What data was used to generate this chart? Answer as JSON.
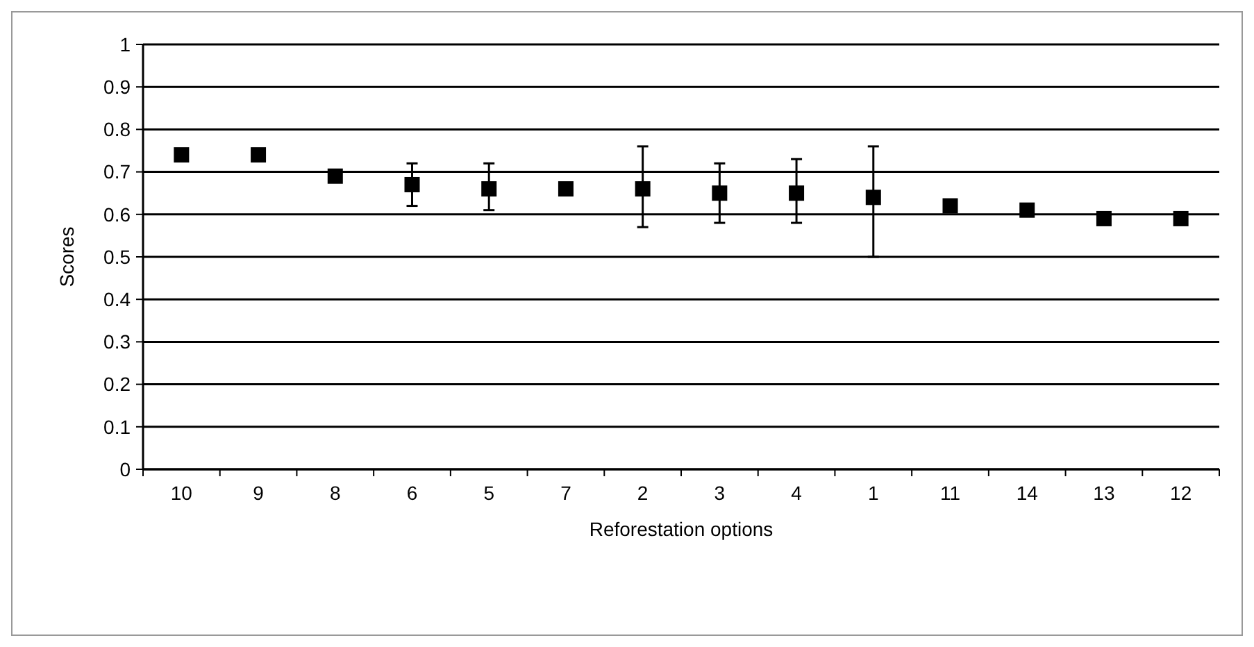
{
  "chart_data": {
    "type": "scatter",
    "xlabel": "Reforestation options",
    "ylabel": "Scores",
    "categories": [
      "10",
      "9",
      "8",
      "6",
      "5",
      "7",
      "2",
      "3",
      "4",
      "1",
      "11",
      "14",
      "13",
      "12"
    ],
    "values": [
      0.74,
      0.74,
      0.69,
      0.67,
      0.66,
      0.66,
      0.66,
      0.65,
      0.65,
      0.64,
      0.62,
      0.61,
      0.59,
      0.59
    ],
    "errors": [
      null,
      null,
      null,
      [
        0.62,
        0.72
      ],
      [
        0.61,
        0.72
      ],
      null,
      [
        0.57,
        0.76
      ],
      [
        0.58,
        0.72
      ],
      [
        0.58,
        0.73
      ],
      [
        0.5,
        0.76
      ],
      null,
      null,
      null,
      null
    ],
    "color": "#000000",
    "marker": "square",
    "ylim": [
      0,
      1
    ],
    "yticks": [
      0,
      0.1,
      0.2,
      0.3,
      0.4,
      0.5,
      0.6,
      0.7,
      0.8,
      0.9,
      1
    ],
    "grid": "y"
  }
}
